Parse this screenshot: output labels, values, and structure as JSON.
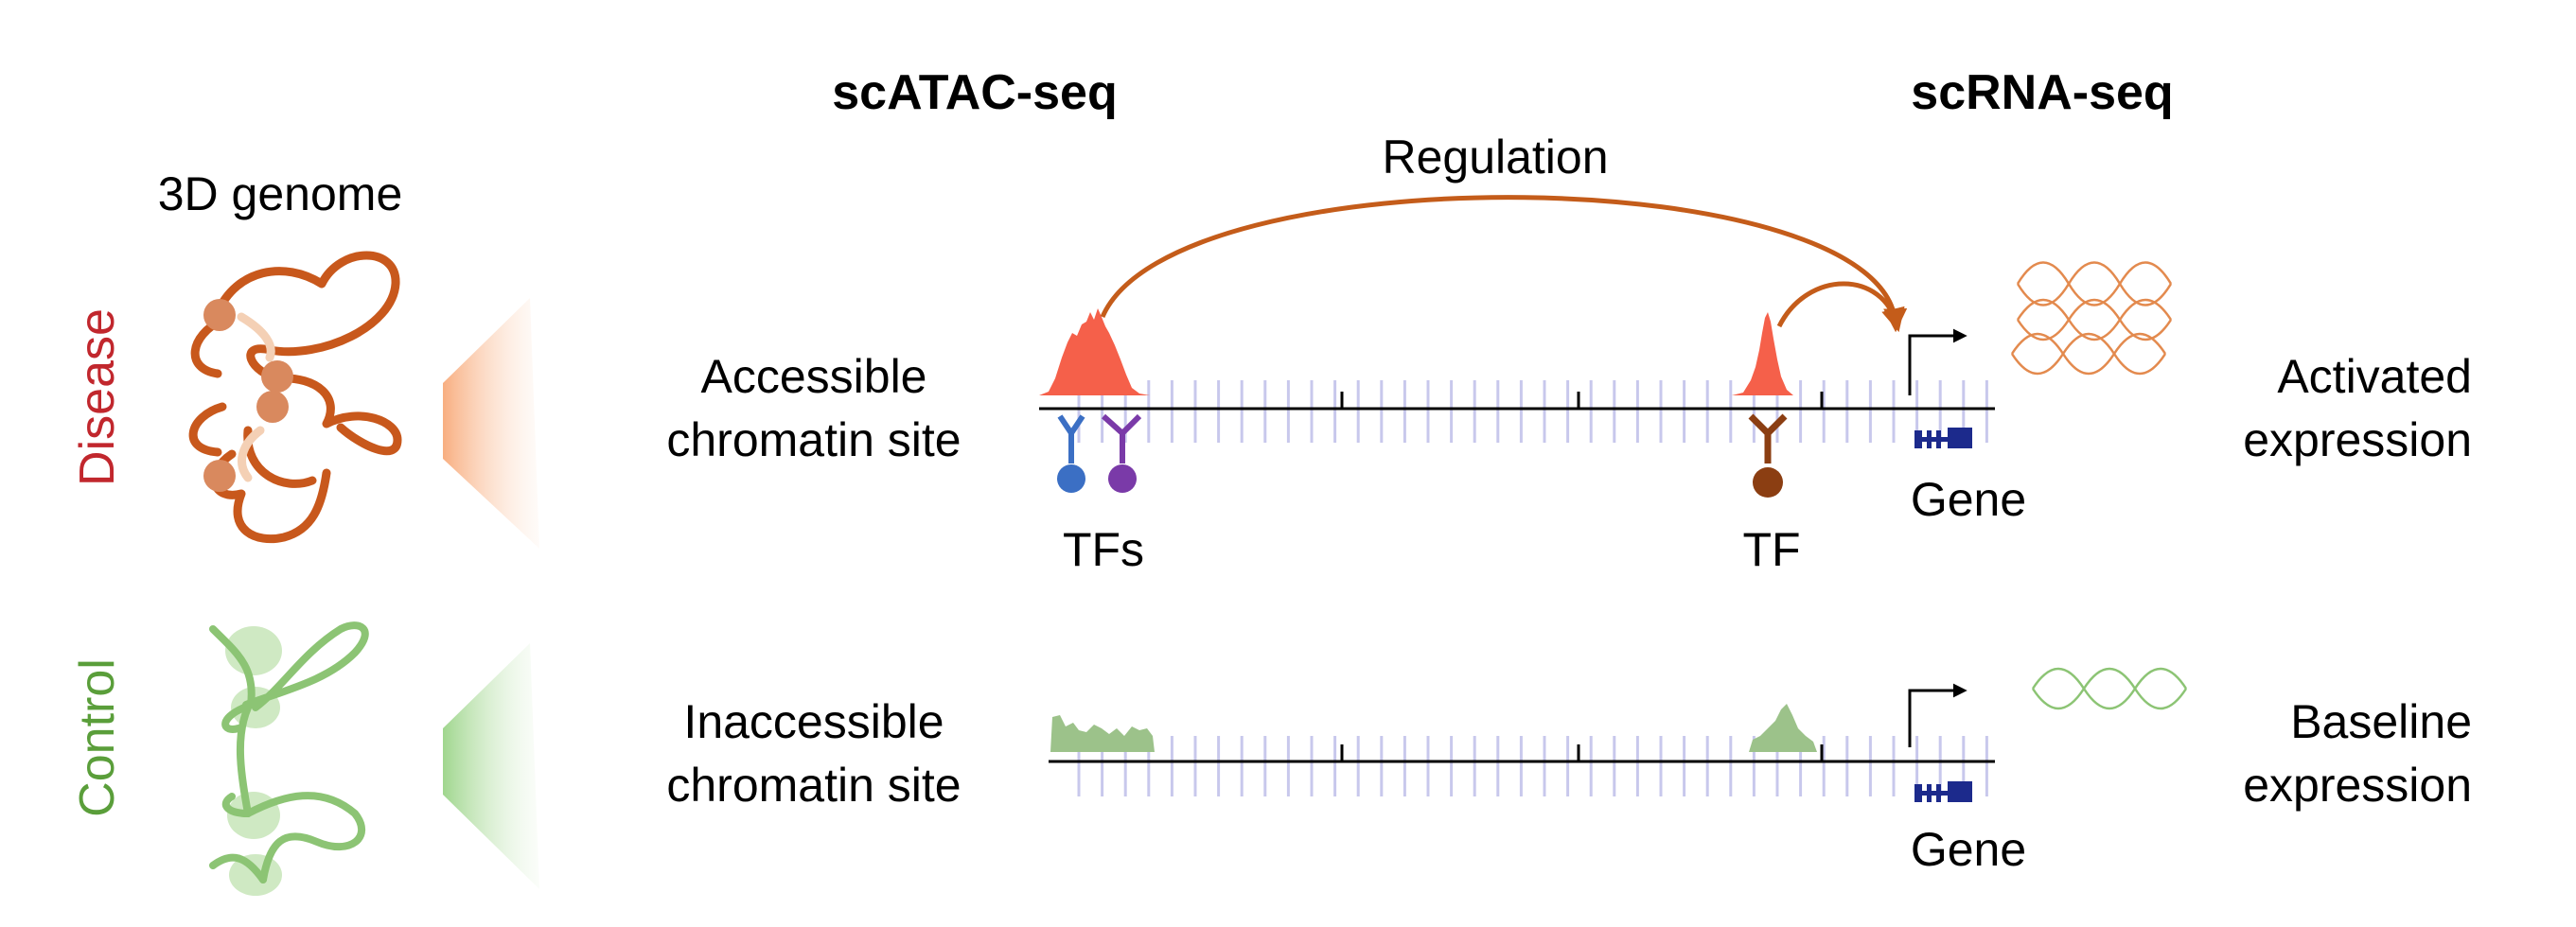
{
  "headers": {
    "atac": "scATAC-seq",
    "rna": "scRNA-seq",
    "genome": "3D genome",
    "regulation": "Regulation"
  },
  "rows": {
    "disease": {
      "label": "Disease",
      "state_line1": "Accessible",
      "state_line2": "chromatin site",
      "tf_left": "TFs",
      "tf_right": "TF",
      "gene": "Gene",
      "expr_line1": "Activated",
      "expr_line2": "expression"
    },
    "control": {
      "label": "Control",
      "state_line1": "Inaccessible",
      "state_line2": "chromatin site",
      "gene": "Gene",
      "expr_line1": "Baseline",
      "expr_line2": "expression"
    }
  },
  "colors": {
    "disease_text": "#c1272d",
    "control_text": "#5a9e3a",
    "peak_disease": "#f5604a",
    "peak_control": "#9cc28a",
    "disease_chromatin": "#c8581c",
    "control_chromatin": "#8cc474",
    "arrow": "#c45c1a",
    "tf_blue": "#3b6fc4",
    "tf_purple": "#7a3aa8",
    "tf_brown": "#8b3e12",
    "gene_model": "#1c2a8c",
    "tick_minor": "#c8c8ec"
  }
}
